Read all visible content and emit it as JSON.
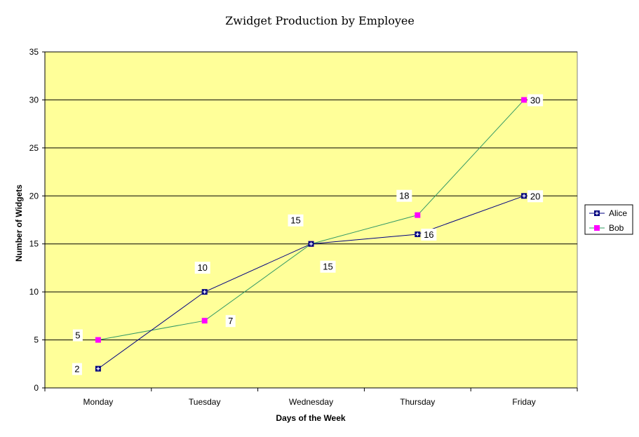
{
  "chart_data": {
    "type": "line",
    "title": "Zwidget Production by Employee",
    "xlabel": "Days of the Week",
    "ylabel": "Number of Widgets",
    "categories": [
      "Monday",
      "Tuesday",
      "Wednesday",
      "Thursday",
      "Friday"
    ],
    "ylim": [
      0,
      35
    ],
    "yticks": [
      0,
      5,
      10,
      15,
      20,
      25,
      30,
      35
    ],
    "grid": true,
    "legend": "right",
    "plot_background": "#FFFF99",
    "series": [
      {
        "name": "Alice",
        "values": [
          2,
          10,
          15,
          16,
          20
        ],
        "color": "#000080",
        "marker": "square-plus"
      },
      {
        "name": "Bob",
        "values": [
          5,
          7,
          15,
          18,
          30
        ],
        "color": "#FF00FF",
        "line_color": "#339966",
        "marker": "square"
      }
    ]
  }
}
